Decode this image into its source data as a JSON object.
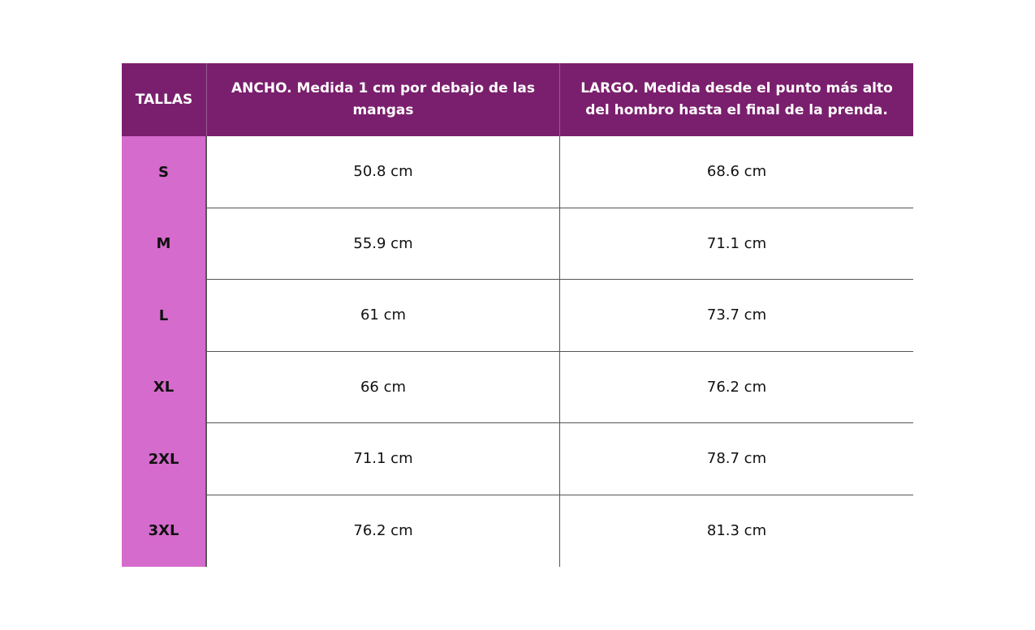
{
  "table": {
    "header": [
      "TALLAS",
      "ANCHO. Medida 1 cm por debajo de las mangas",
      "LARGO. Medida desde el punto más alto del hombro hasta el final de la prenda."
    ],
    "rows": [
      [
        "S",
        "50.8 cm",
        "68.6 cm"
      ],
      [
        "M",
        "55.9 cm",
        "71.1 cm"
      ],
      [
        "L",
        "61 cm",
        "73.7 cm"
      ],
      [
        "XL",
        "66 cm",
        "76.2 cm"
      ],
      [
        "2XL",
        "71.1 cm",
        "78.7 cm"
      ],
      [
        "3XL",
        "76.2 cm",
        "81.3 cm"
      ]
    ]
  }
}
